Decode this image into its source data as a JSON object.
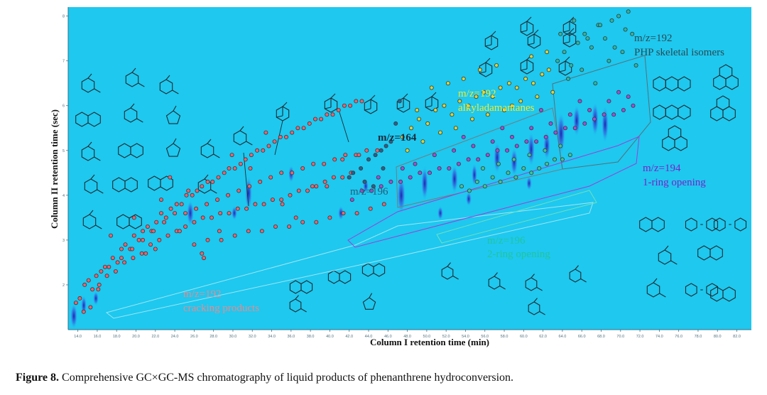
{
  "chart_data": {
    "type": "scatter",
    "title": "",
    "xlabel": "Column I retention time (min)",
    "ylabel": "Column II retention time (sec)",
    "xlim": [
      13.0,
      83.5
    ],
    "ylim": [
      1.0,
      8.2
    ],
    "background_color": "#1ec8ef",
    "x_ticks": [
      "14.0",
      "16.0",
      "18.0",
      "20.0",
      "22.0",
      "24.0",
      "26.0",
      "28.0",
      "30.0",
      "32.0",
      "34.0",
      "36.0",
      "38.0",
      "40.0",
      "42.0",
      "44.0",
      "46.0",
      "48.0",
      "50.0",
      "52.0",
      "54.0",
      "56.0",
      "58.0",
      "60.0",
      "62.0",
      "64.0",
      "66.0",
      "68.0",
      "70.0",
      "72.0",
      "74.0",
      "76.0",
      "78.0",
      "80.0",
      "82.0"
    ],
    "y_ticks": [
      "2",
      "3",
      "4",
      "5",
      "6",
      "7",
      "8"
    ],
    "series": [
      {
        "name": "m/z=192 cracking products",
        "color": "#e8636f",
        "x": [
          13.8,
          14.2,
          14.7,
          15.1,
          15.5,
          15.9,
          16.4,
          16.8,
          17.2,
          17.6,
          18.1,
          18.5,
          18.9,
          19.4,
          19.8,
          20.3,
          20.7,
          21.2,
          21.6,
          22.1,
          22.6,
          23.1,
          23.6,
          24.2,
          24.7,
          25.2,
          25.8,
          26.3,
          26.8,
          27.4,
          27.9,
          28.5,
          29.1,
          29.6,
          30.2,
          30.8,
          31.3,
          31.9,
          32.5,
          33.1,
          33.7,
          34.3,
          34.9,
          35.5,
          36.1,
          36.7,
          37.3,
          37.9,
          38.5,
          39.1,
          39.7,
          40.3,
          40.9,
          41.5,
          42.1,
          42.7,
          43.3,
          16.2,
          17.0,
          17.9,
          18.8,
          19.7,
          20.6,
          21.5,
          22.4,
          23.3,
          24.2,
          25.1,
          26.0,
          26.9,
          27.8,
          28.7,
          29.6,
          30.5,
          31.4,
          32.3,
          33.2,
          34.1,
          35.0,
          35.9,
          36.8,
          37.7,
          38.6,
          39.5,
          40.4,
          41.3,
          42.2,
          18.5,
          19.6,
          20.7,
          21.8,
          22.9,
          24.0,
          25.1,
          26.2,
          27.3,
          28.4,
          29.5,
          30.6,
          31.7,
          32.8,
          33.9,
          35.0,
          36.1,
          37.2,
          38.3,
          39.4,
          40.5,
          41.6,
          42.7,
          43.8,
          44.9,
          26.0,
          27.4,
          28.8,
          30.2,
          31.6,
          33.0,
          34.4,
          35.8,
          37.2,
          38.6,
          40.0,
          41.4,
          42.8,
          44.2,
          45.6,
          17.4,
          19.8,
          22.6,
          25.4,
          28.6,
          31.8,
          35.1,
          38.2,
          41.3,
          21.0,
          23.5,
          26.8,
          29.9,
          33.4,
          36.5,
          39.7,
          43.0,
          14.6,
          15.3,
          16.1,
          22.0,
          24.5,
          27.0
        ],
        "y": [
          1.6,
          1.7,
          2.0,
          2.1,
          1.9,
          2.2,
          2.3,
          2.4,
          2.4,
          2.6,
          2.5,
          2.8,
          2.9,
          2.8,
          3.1,
          3.0,
          3.2,
          3.3,
          3.2,
          3.4,
          3.6,
          3.5,
          3.7,
          3.8,
          3.8,
          4.0,
          4.0,
          4.1,
          4.2,
          4.3,
          4.3,
          4.4,
          4.5,
          4.6,
          4.6,
          4.7,
          4.8,
          4.9,
          5.0,
          5.0,
          5.1,
          5.2,
          5.3,
          5.3,
          5.4,
          5.5,
          5.5,
          5.6,
          5.7,
          5.7,
          5.8,
          5.8,
          5.9,
          6.0,
          6.0,
          6.1,
          6.1,
          2.0,
          2.2,
          2.3,
          2.5,
          2.6,
          2.7,
          2.9,
          3.0,
          3.1,
          3.2,
          3.3,
          3.4,
          3.5,
          3.5,
          3.6,
          3.6,
          3.7,
          3.7,
          3.8,
          3.8,
          3.9,
          3.9,
          4.0,
          4.1,
          4.1,
          4.2,
          4.3,
          4.4,
          4.4,
          4.5,
          2.6,
          2.8,
          3.0,
          3.2,
          3.4,
          3.6,
          3.6,
          3.7,
          3.8,
          3.9,
          4.0,
          4.1,
          4.2,
          4.3,
          4.4,
          4.5,
          4.5,
          4.6,
          4.7,
          4.7,
          4.8,
          4.9,
          4.9,
          5.0,
          5.0,
          2.9,
          3.0,
          3.0,
          3.1,
          3.2,
          3.2,
          3.3,
          3.3,
          3.4,
          3.4,
          3.5,
          3.6,
          3.6,
          3.7,
          3.8,
          3.1,
          3.5,
          3.9,
          4.1,
          3.2,
          4.6,
          3.8,
          4.2,
          4.8,
          2.7,
          4.4,
          2.7,
          4.9,
          5.4,
          3.5,
          4.2,
          4.9,
          1.4,
          1.5,
          1.9,
          2.8,
          3.2,
          2.6
        ]
      },
      {
        "name": "m/z=164",
        "color": "#2b5f8c",
        "x": [
          42.4,
          43.2,
          44.0,
          44.7,
          45.3,
          45.8,
          46.3,
          43.6,
          44.5,
          45.5,
          42.0,
          46.8,
          47.2
        ],
        "y": [
          4.5,
          4.6,
          4.8,
          4.9,
          5.0,
          5.1,
          5.2,
          4.3,
          4.2,
          4.6,
          4.4,
          5.6,
          6.1
        ]
      },
      {
        "name": "m/z=192 alkyladamantanes",
        "color": "#d9d23a",
        "x": [
          47.5,
          48.4,
          49.2,
          50.1,
          50.9,
          51.8,
          52.6,
          53.4,
          54.3,
          55.1,
          55.9,
          56.8,
          57.6,
          58.5,
          59.3,
          60.2,
          61.0,
          61.9,
          62.6,
          48.0,
          49.6,
          51.4,
          53.0,
          54.7,
          56.3,
          58.0,
          59.7,
          61.4,
          63.0,
          50.5,
          52.2,
          55.5,
          57.2,
          60.8,
          62.4,
          49.0,
          53.8,
          58.8
        ],
        "y": [
          5.3,
          5.5,
          5.7,
          5.6,
          5.9,
          6.0,
          5.8,
          6.1,
          6.0,
          6.2,
          6.3,
          6.2,
          6.4,
          6.5,
          6.4,
          6.6,
          6.5,
          6.7,
          6.8,
          5.0,
          5.2,
          5.4,
          5.5,
          5.7,
          5.8,
          5.9,
          6.1,
          6.2,
          6.3,
          6.4,
          6.5,
          6.8,
          6.9,
          7.1,
          7.2,
          5.9,
          6.6,
          6.0
        ]
      },
      {
        "name": "m/z=192 PHP skeletal isomers",
        "color": "#2bb6a3",
        "x": [
          63.5,
          64.2,
          64.9,
          65.6,
          66.3,
          67.0,
          67.7,
          68.4,
          69.1,
          69.8,
          70.5,
          71.2,
          64.6,
          66.0,
          67.4,
          68.8,
          70.2,
          71.6,
          65.2,
          67.9,
          70.8,
          69.4,
          66.6,
          63.8
        ],
        "y": [
          7.0,
          7.2,
          6.9,
          7.4,
          7.6,
          7.3,
          7.8,
          7.5,
          7.9,
          8.0,
          7.7,
          7.6,
          6.6,
          6.8,
          6.5,
          7.0,
          7.2,
          6.9,
          7.9,
          7.8,
          8.1,
          7.3,
          7.5,
          7.6
        ]
      },
      {
        "name": "m/z=194 1-ring opening",
        "color": "#a04fd6",
        "x": [
          42.3,
          43.3,
          44.3,
          45.3,
          46.3,
          47.3,
          48.3,
          49.3,
          50.3,
          51.3,
          52.3,
          53.3,
          54.3,
          55.3,
          56.3,
          57.3,
          58.3,
          59.3,
          60.3,
          61.3,
          62.3,
          63.3,
          64.3,
          65.3,
          66.3,
          67.3,
          68.3,
          69.3,
          70.3,
          71.3,
          48.8,
          50.8,
          52.8,
          54.8,
          56.8,
          58.8,
          60.8,
          62.8,
          64.8,
          66.8,
          68.8,
          70.8,
          45.0,
          47.5,
          53.8,
          57.8,
          61.8,
          65.8,
          69.8
        ],
        "y": [
          3.9,
          4.1,
          4.1,
          4.2,
          4.3,
          4.3,
          4.4,
          4.5,
          4.5,
          4.6,
          4.6,
          4.7,
          4.8,
          4.8,
          4.9,
          5.0,
          5.0,
          5.1,
          5.2,
          5.2,
          5.3,
          5.4,
          5.5,
          5.5,
          5.6,
          5.7,
          5.8,
          5.8,
          5.9,
          6.0,
          4.7,
          4.9,
          5.0,
          5.1,
          5.2,
          5.3,
          5.5,
          5.6,
          5.8,
          5.9,
          6.1,
          6.2,
          4.4,
          4.6,
          5.3,
          5.5,
          5.9,
          6.1,
          6.3
        ]
      },
      {
        "name": "m/z=196 2-ring opening",
        "color": "#3ec49a",
        "x": [
          53.6,
          54.4,
          55.2,
          56.0,
          56.8,
          57.6,
          58.4,
          59.2,
          60.0,
          60.8,
          61.6,
          62.4,
          63.2,
          64.0,
          64.8,
          55.8,
          57.4,
          59.0,
          60.6,
          62.2,
          63.8
        ],
        "y": [
          4.2,
          4.1,
          4.3,
          4.2,
          4.4,
          4.3,
          4.5,
          4.4,
          4.6,
          4.5,
          4.6,
          4.7,
          4.8,
          4.8,
          4.9,
          4.6,
          4.7,
          4.8,
          4.9,
          5.0,
          5.1
        ]
      }
    ],
    "annotations": [
      {
        "text": "m/z=192",
        "color": "#e98a8f"
      },
      {
        "text": "cracking products",
        "color": "#e98a8f"
      },
      {
        "text": "m/z=164",
        "color": "#1a2a3a"
      },
      {
        "text": "m/z=196",
        "color": "#285a78"
      },
      {
        "text": "m/z=192",
        "color": "#f2ea2a"
      },
      {
        "text": "alkyladamantanes",
        "color": "#f2ea2a"
      },
      {
        "text": "m/z=192",
        "color": "#2b4a52"
      },
      {
        "text": "PHP skeletal isomers",
        "color": "#2b4a52"
      },
      {
        "text": "m/z=194",
        "color": "#7a22c8"
      },
      {
        "text": "1-ring opening",
        "color": "#7a22c8"
      },
      {
        "text": "m/z=196",
        "color": "#22c49c"
      },
      {
        "text": "2-ring opening",
        "color": "#22c49c"
      }
    ]
  },
  "caption": {
    "label": "Figure 8.",
    "text": " Comprehensive GC×GC-MS chromatography of liquid products of phenanthrene hydroconversion."
  },
  "structure_icons": [
    "cyclohexane-icon",
    "cyclohexane-icon",
    "cyclohexane-icon",
    "decalin-icon",
    "cyclohexane-icon",
    "cyclopentane-icon",
    "cyclohexane-icon",
    "decalin-icon",
    "cyclopentane-icon",
    "cyclohexane-icon",
    "hydrindane-icon",
    "decalin-icon",
    "cyclohexane-icon",
    "cyclohexane-icon",
    "cyclohexane-icon",
    "cyclohexane-icon",
    "decalin-icon",
    "adamantane-icon",
    "adamantane-icon",
    "adamantane-icon",
    "adamantane-icon",
    "adamantane-icon",
    "adamantane-icon",
    "adamantane-icon",
    "adamantane-icon",
    "adamantane-icon",
    "adamantane-icon",
    "adamantane-icon",
    "adamantane-icon",
    "adamantane-icon",
    "anthracene-icon",
    "phenanthrene-icon",
    "anthracene-icon",
    "phenanthrene-icon",
    "phenalene-icon",
    "naphthalene-icon",
    "cyclohexylbenzene-icon",
    "diphenylmethane-icon",
    "cyclohexane-icon",
    "naphthalene-icon",
    "biphenyl-icon",
    "benzene-icon",
    "decalin-icon",
    "decalin-icon",
    "decalin-icon",
    "decalin-icon",
    "cyclohexane-icon",
    "cyclopentane-icon",
    "cyclohexane-icon",
    "cyclohexane-icon",
    "cyclohexane-icon",
    "cyclohexane-icon",
    "cyclohexane-icon"
  ]
}
